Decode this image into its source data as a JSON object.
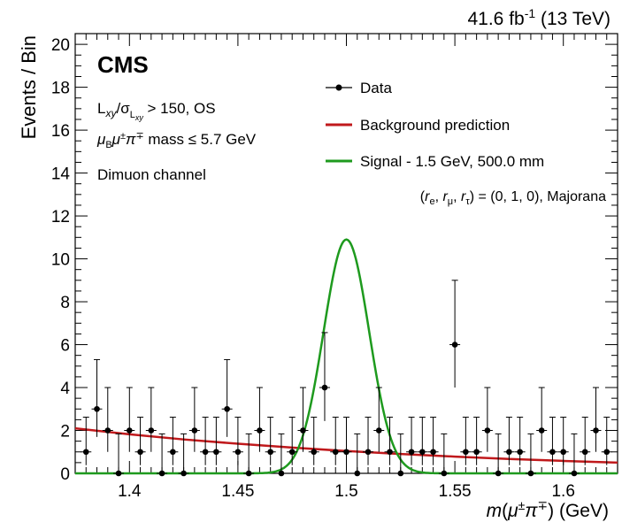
{
  "chart_data": {
    "type": "scatter",
    "lumi": {
      "main": "41.6 fb",
      "sup": "-1",
      "energy": " (13 TeV)"
    },
    "experiment": "CMS",
    "annotations": {
      "line1": "L_xy/σ_Lxy > 150, OS",
      "line2": "μ_B μ± π∓ mass ≤ 5.7 GeV",
      "line3": "Dimuon channel",
      "coupling": "(r_e, r_μ, r_τ) = (0, 1, 0), Majorana"
    },
    "xlabel": "m(μ±π∓) (GeV)",
    "ylabel": "Events / Bin",
    "xlim": [
      1.375,
      1.625
    ],
    "ylim": [
      0,
      20.5
    ],
    "xticks": [
      1.4,
      1.45,
      1.5,
      1.55,
      1.6
    ],
    "xtick_labels": [
      "1.4",
      "1.45",
      "1.5",
      "1.55",
      "1.6"
    ],
    "yticks": [
      0,
      2,
      4,
      6,
      8,
      10,
      12,
      14,
      16,
      18,
      20
    ],
    "ytick_labels": [
      "0",
      "2",
      "4",
      "6",
      "8",
      "10",
      "12",
      "14",
      "16",
      "18",
      "20"
    ],
    "grid": false,
    "legend_position": "top-right",
    "series": [
      {
        "name": "Data",
        "kind": "points_with_errors",
        "color": "#000000",
        "x": [
          1.38,
          1.385,
          1.39,
          1.395,
          1.4,
          1.405,
          1.41,
          1.415,
          1.42,
          1.425,
          1.43,
          1.435,
          1.44,
          1.445,
          1.45,
          1.455,
          1.46,
          1.465,
          1.47,
          1.475,
          1.48,
          1.485,
          1.49,
          1.495,
          1.5,
          1.505,
          1.51,
          1.515,
          1.52,
          1.525,
          1.53,
          1.535,
          1.54,
          1.545,
          1.55,
          1.555,
          1.56,
          1.565,
          1.57,
          1.575,
          1.58,
          1.585,
          1.59,
          1.595,
          1.6,
          1.605,
          1.61,
          1.615,
          1.62
        ],
        "y": [
          1,
          3,
          2,
          0,
          2,
          1,
          2,
          0,
          1,
          0,
          2,
          1,
          1,
          3,
          1,
          0,
          2,
          1,
          0,
          1,
          2,
          1,
          4,
          1,
          1,
          0,
          1,
          2,
          1,
          0,
          1,
          1,
          1,
          0,
          6,
          1,
          1,
          2,
          0,
          1,
          1,
          0,
          2,
          1,
          1,
          0,
          1,
          2,
          1
        ]
      },
      {
        "name": "Background prediction",
        "kind": "curve",
        "color": "#c0191c",
        "x": [
          1.375,
          1.4,
          1.425,
          1.45,
          1.475,
          1.5,
          1.525,
          1.55,
          1.575,
          1.6,
          1.625
        ],
        "y": [
          2.1,
          1.82,
          1.58,
          1.38,
          1.2,
          1.04,
          0.9,
          0.78,
          0.67,
          0.58,
          0.5
        ]
      },
      {
        "name": "Signal - 1.5 GeV, 500.0 mm",
        "kind": "gaussian",
        "color": "#1e9a1e",
        "peak": 10.9,
        "mean": 1.5,
        "sigma": 0.0105
      }
    ]
  }
}
